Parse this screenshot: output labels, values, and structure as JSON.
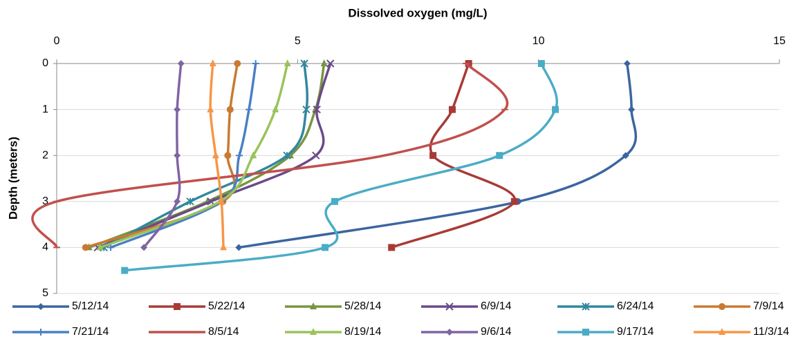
{
  "chart_data": {
    "type": "line",
    "x_label": "Dissolved oxygen (mg/L)",
    "y_label": "Depth (meters)",
    "xlim": [
      0,
      15
    ],
    "xticks": [
      0,
      5,
      10,
      15
    ],
    "ylim": [
      5,
      0
    ],
    "yticks": [
      0,
      1,
      2,
      3,
      4,
      5
    ],
    "grid": true,
    "legend": "bottom",
    "smooth": true,
    "series": [
      {
        "name": "5/12/14",
        "color": "#3c65a0",
        "marker": "diamond",
        "x": [
          11.84,
          11.93,
          11.81,
          9.59,
          3.78
        ],
        "values": [
          0,
          1,
          2,
          3,
          4
        ]
      },
      {
        "name": "5/22/14",
        "color": "#a83a36",
        "marker": "square",
        "x": [
          8.55,
          8.21,
          7.81,
          9.5,
          6.95
        ],
        "values": [
          0,
          1,
          2,
          3,
          4
        ]
      },
      {
        "name": "5/28/14",
        "color": "#789540",
        "marker": "triangle",
        "x": [
          5.55,
          5.37,
          4.85,
          3.13,
          0.67
        ],
        "values": [
          0,
          1,
          2,
          3,
          4
        ]
      },
      {
        "name": "6/9/14",
        "color": "#6a4a8a",
        "marker": "x",
        "x": [
          5.68,
          5.4,
          5.38,
          3.2,
          0.85
        ],
        "values": [
          0,
          1,
          2,
          3,
          4
        ]
      },
      {
        "name": "6/24/14",
        "color": "#31879e",
        "marker": "asterisk",
        "x": [
          5.14,
          5.18,
          4.78,
          2.77,
          0.98
        ],
        "values": [
          0,
          1,
          2,
          3,
          4
        ]
      },
      {
        "name": "7/9/14",
        "color": "#c97a32",
        "marker": "circle",
        "x": [
          3.75,
          3.6,
          3.55,
          3.45,
          0.6
        ],
        "values": [
          0,
          1,
          2,
          3,
          4
        ]
      },
      {
        "name": "7/21/14",
        "color": "#4a80c4",
        "marker": "plus",
        "x": [
          4.13,
          3.99,
          3.79,
          3.42,
          1.12
        ],
        "values": [
          0,
          1,
          2,
          3,
          4
        ]
      },
      {
        "name": "8/5/14",
        "color": "#c0504d",
        "marker": "dash",
        "x": [
          8.5,
          9.3,
          6.8,
          0,
          0
        ],
        "values": [
          0,
          1,
          2,
          3,
          4
        ]
      },
      {
        "name": "8/19/14",
        "color": "#9bc35a",
        "marker": "triangle",
        "x": [
          4.79,
          4.54,
          4.08,
          3.39,
          0.9
        ],
        "values": [
          0,
          1,
          2,
          3,
          4
        ]
      },
      {
        "name": "9/6/14",
        "color": "#8064a2",
        "marker": "diamond",
        "x": [
          2.58,
          2.5,
          2.5,
          2.5,
          1.81
        ],
        "values": [
          0,
          1,
          2,
          3,
          4
        ]
      },
      {
        "name": "9/17/14",
        "color": "#4bacc6",
        "marker": "square",
        "x": [
          10.06,
          10.35,
          9.19,
          5.77,
          5.57,
          1.41
        ],
        "values": [
          0,
          1,
          2,
          3,
          4,
          4.5
        ]
      },
      {
        "name": "11/3/14",
        "color": "#f79646",
        "marker": "triangle",
        "x": [
          3.24,
          3.19,
          3.3,
          3.42,
          3.46
        ],
        "values": [
          0,
          1,
          2,
          3,
          4
        ]
      }
    ]
  }
}
